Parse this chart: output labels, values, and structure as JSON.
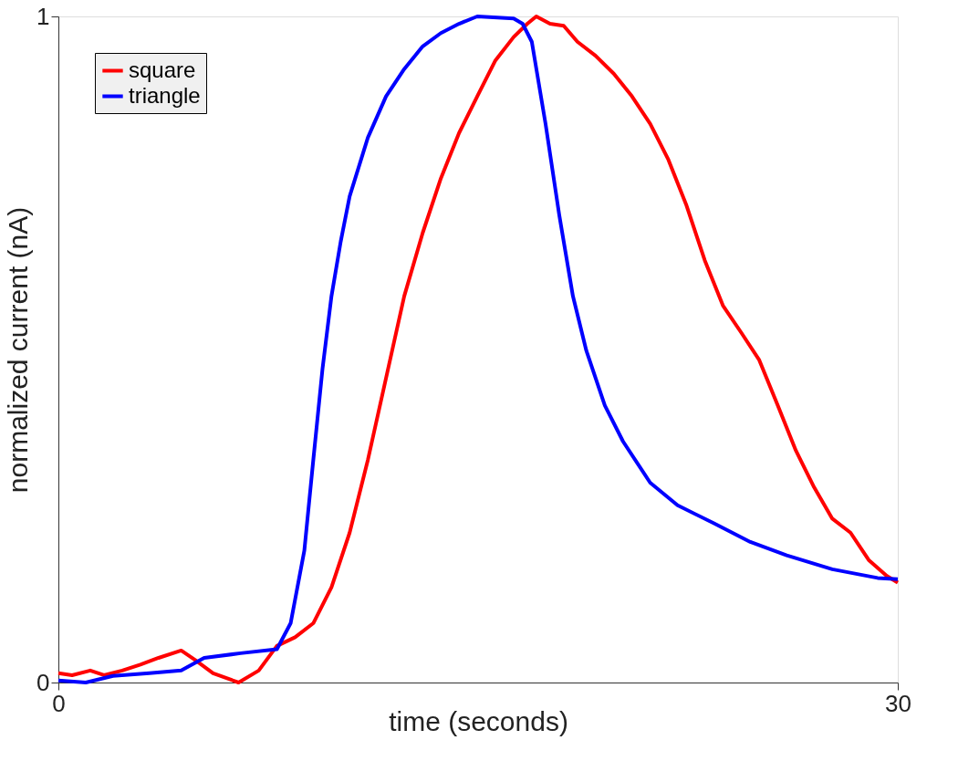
{
  "chart_data": {
    "type": "line",
    "xlabel": "time (seconds)",
    "ylabel": "normalized current (nA)",
    "xlim": [
      0,
      30
    ],
    "xticks": [
      0,
      30
    ],
    "ylim": [
      0,
      1
    ],
    "yticks": [
      0,
      1
    ],
    "grid": false,
    "legend": "top left",
    "line_style": "solid",
    "marker": "none",
    "series": [
      {
        "name": "square",
        "color": "#ff0000",
        "x": [
          0,
          0.49,
          1.14,
          1.63,
          2.28,
          2.93,
          3.58,
          4.39,
          4.88,
          5.53,
          6.44,
          7.16,
          7.81,
          8.46,
          9.11,
          9.76,
          10.41,
          11.06,
          11.71,
          12.36,
          13.02,
          13.67,
          14.32,
          14.97,
          15.62,
          16.27,
          16.76,
          17.08,
          17.57,
          18.06,
          18.55,
          19.2,
          19.85,
          20.5,
          21.15,
          21.8,
          22.45,
          23.1,
          23.75,
          24.41,
          25.05,
          25.71,
          26.36,
          27.01,
          27.66,
          28.31,
          28.96,
          29.61,
          30
        ],
        "values": [
          0.014,
          0.011,
          0.018,
          0.011,
          0.018,
          0.027,
          0.037,
          0.048,
          0.034,
          0.014,
          0.0,
          0.018,
          0.055,
          0.068,
          0.089,
          0.143,
          0.225,
          0.334,
          0.457,
          0.58,
          0.675,
          0.757,
          0.825,
          0.88,
          0.934,
          0.969,
          0.989,
          1.0,
          0.989,
          0.986,
          0.962,
          0.941,
          0.914,
          0.88,
          0.839,
          0.785,
          0.716,
          0.634,
          0.566,
          0.525,
          0.484,
          0.416,
          0.348,
          0.293,
          0.246,
          0.225,
          0.184,
          0.16,
          0.15
        ]
      },
      {
        "name": "triangle",
        "color": "#0000ff",
        "x": [
          0,
          0.98,
          1.95,
          3.25,
          4.39,
          5.21,
          6.51,
          7.81,
          8.3,
          8.79,
          9.11,
          9.44,
          9.76,
          10.09,
          10.41,
          11.06,
          11.71,
          12.36,
          13.02,
          13.67,
          14.32,
          14.97,
          16.27,
          16.59,
          16.92,
          17.41,
          17.9,
          18.39,
          18.87,
          19.53,
          20.18,
          21.15,
          22.13,
          23.43,
          24.73,
          26.03,
          27.66,
          29.28,
          30
        ],
        "values": [
          0.003,
          0.0,
          0.01,
          0.014,
          0.018,
          0.037,
          0.044,
          0.05,
          0.089,
          0.198,
          0.334,
          0.471,
          0.58,
          0.662,
          0.73,
          0.818,
          0.88,
          0.921,
          0.955,
          0.975,
          0.989,
          1.0,
          0.997,
          0.989,
          0.962,
          0.839,
          0.702,
          0.58,
          0.498,
          0.416,
          0.362,
          0.3,
          0.266,
          0.239,
          0.211,
          0.191,
          0.17,
          0.157,
          0.155
        ]
      }
    ]
  }
}
